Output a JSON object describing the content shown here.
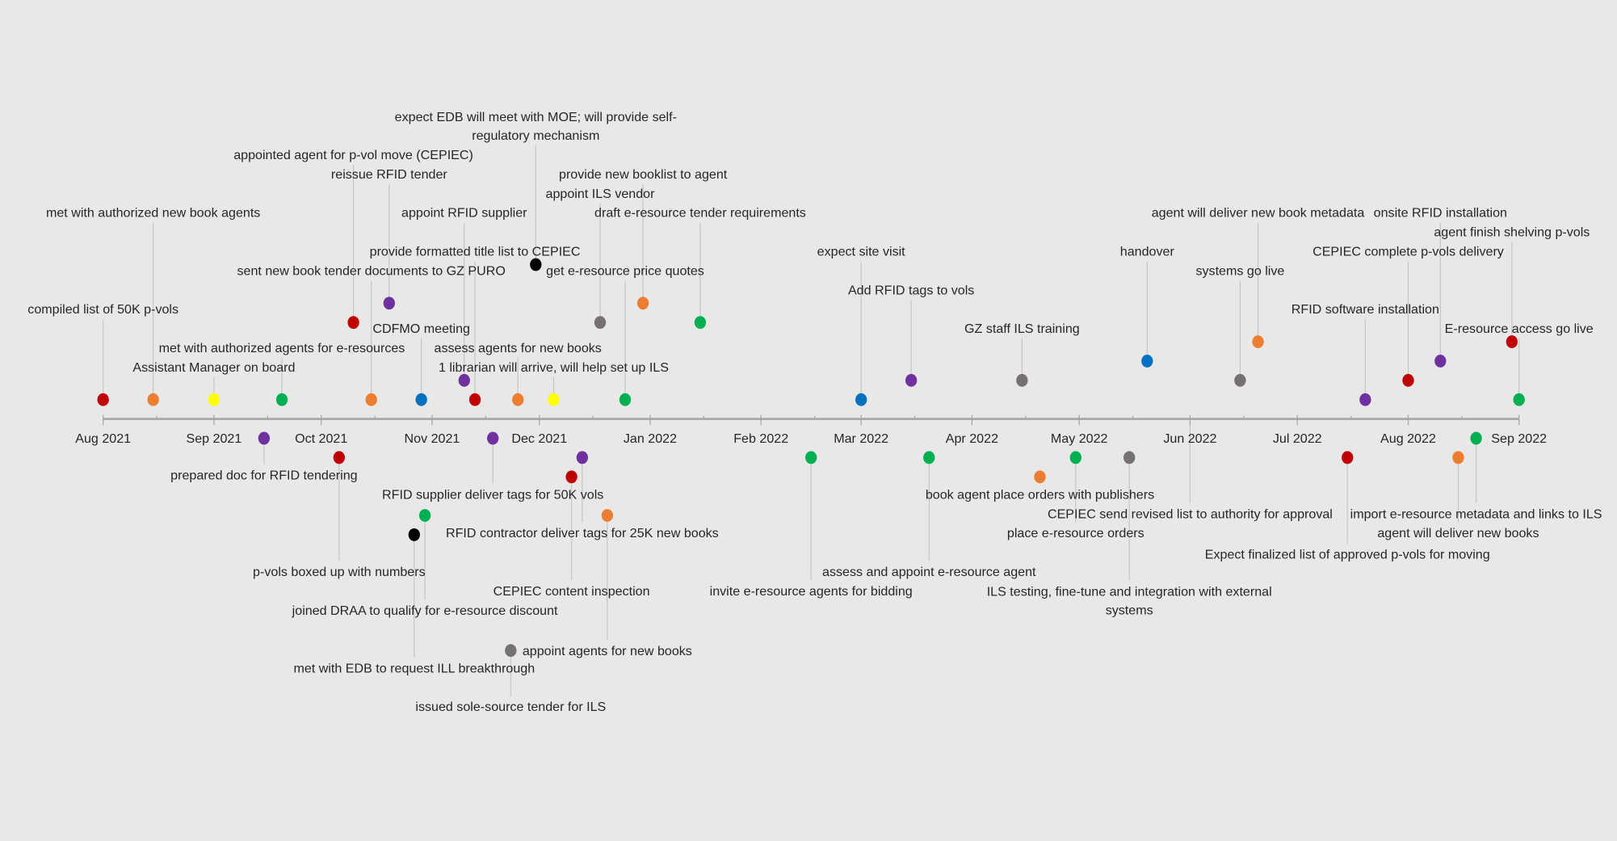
{
  "chart_data": {
    "type": "scatter",
    "subtype": "timeline",
    "title": "",
    "xlabel": "",
    "ylabel": "",
    "x_range": [
      "2021-08-01",
      "2022-09-01"
    ],
    "x_ticks": [
      "Aug 2021",
      "Sep 2021",
      "Oct 2021",
      "Nov 2021",
      "Dec 2021",
      "Jan 2022",
      "Feb 2022",
      "Mar 2022",
      "Apr 2022",
      "May 2022",
      "Jun 2022",
      "Jul 2022",
      "Aug 2022",
      "Sep 2022"
    ],
    "grid": false,
    "legend": "none",
    "background": "#e8e8e8",
    "colors": {
      "red": "#C00000",
      "orange": "#ED7D31",
      "yellow": "#FFFF00",
      "green": "#00B050",
      "blue": "#0070C0",
      "purple": "#7030A0",
      "black": "#000000",
      "grey": "#767171"
    },
    "events": [
      {
        "date": "2021-08-01",
        "y": 1,
        "label_level": 5.7,
        "color": "red",
        "label": "compiled list of 50K p-vols"
      },
      {
        "date": "2021-08-15",
        "y": 1,
        "label_level": 10.7,
        "color": "orange",
        "label": "met with authorized new book agents"
      },
      {
        "date": "2021-09-01",
        "y": 1,
        "label_level": 2.7,
        "color": "yellow",
        "label": "Assistant Manager on board"
      },
      {
        "date": "2021-09-20",
        "y": 1,
        "label_level": 3.7,
        "color": "green",
        "label": "met with authorized agents for e-resources"
      },
      {
        "date": "2021-10-10",
        "y": 5,
        "label_level": 13.7,
        "color": "red",
        "label": "appointed agent for p-vol  move (CEPIEC)"
      },
      {
        "date": "2021-10-15",
        "y": 1,
        "label_level": 7.7,
        "color": "orange",
        "label": "sent new book tender documents to GZ PURO"
      },
      {
        "date": "2021-10-20",
        "y": 6,
        "label_level": 12.7,
        "color": "purple",
        "label": "reissue RFID tender"
      },
      {
        "date": "2021-10-29",
        "y": 1,
        "label_level": 4.7,
        "color": "blue",
        "label": "CDFMO meeting"
      },
      {
        "date": "2021-11-10",
        "y": 2,
        "label_level": 10.7,
        "color": "purple",
        "label": "appoint RFID supplier"
      },
      {
        "date": "2021-11-13",
        "y": 1,
        "label_level": 8.7,
        "color": "red",
        "label": "provide formatted title list to CEPIEC"
      },
      {
        "date": "2021-11-25",
        "y": 1,
        "label_level": 3.7,
        "color": "orange",
        "label": "assess agents for new books"
      },
      {
        "date": "2021-11-30",
        "y": 8,
        "label_level": 15.2,
        "color": "black",
        "label": [
          "expect EDB will meet with MOE; will provide self-",
          "regulatory mechanism"
        ]
      },
      {
        "date": "2021-12-05",
        "y": 1,
        "label_level": 2.7,
        "color": "yellow",
        "label": "1 librarian will arrive, will help set up ILS"
      },
      {
        "date": "2021-12-18",
        "y": 5,
        "label_level": 11.7,
        "color": "grey",
        "label": "appoint ILS vendor"
      },
      {
        "date": "2021-12-25",
        "y": 1,
        "label_level": 7.7,
        "color": "green",
        "label": "get e-resource price quotes"
      },
      {
        "date": "2021-12-30",
        "y": 6,
        "label_level": 12.7,
        "color": "orange",
        "label": "provide new booklist to agent"
      },
      {
        "date": "2022-01-15",
        "y": 5,
        "label_level": 10.7,
        "color": "green",
        "label": "draft e-resource tender requirements"
      },
      {
        "date": "2022-03-01",
        "y": 1,
        "label_level": 8.7,
        "color": "blue",
        "label": "expect site visit"
      },
      {
        "date": "2022-03-15",
        "y": 2,
        "label_level": 6.7,
        "color": "purple",
        "label": "Add RFID tags to vols"
      },
      {
        "date": "2022-04-15",
        "y": 2,
        "label_level": 4.7,
        "color": "grey",
        "label": "GZ staff ILS training"
      },
      {
        "date": "2022-05-20",
        "y": 3,
        "label_level": 8.7,
        "color": "blue",
        "label": "handover"
      },
      {
        "date": "2022-06-15",
        "y": 2,
        "label_level": 7.7,
        "color": "grey",
        "label": "systems go live"
      },
      {
        "date": "2022-06-20",
        "y": 4,
        "label_level": 10.7,
        "color": "orange",
        "label": "agent will deliver new book metadata"
      },
      {
        "date": "2022-07-20",
        "y": 1,
        "label_level": 5.7,
        "color": "purple",
        "label": "RFID software installation"
      },
      {
        "date": "2022-08-01",
        "y": 2,
        "label_level": 8.7,
        "color": "red",
        "label": "CEPIEC complete p-vols delivery"
      },
      {
        "date": "2022-08-10",
        "y": 3,
        "label_level": 10.7,
        "color": "purple",
        "label": "onsite RFID installation"
      },
      {
        "date": "2022-08-30",
        "y": 4,
        "label_level": 9.7,
        "color": "red",
        "label": "agent finish shelving p-vols"
      },
      {
        "date": "2022-09-01",
        "y": 1,
        "label_level": 4.7,
        "color": "green",
        "label": "E-resource access go live"
      },
      {
        "date": "2021-09-15",
        "y": -1,
        "label_level": -2.9,
        "color": "purple",
        "label": "prepared doc for RFID tendering"
      },
      {
        "date": "2021-10-06",
        "y": -2,
        "label_level": -7.9,
        "color": "red",
        "label": "p-vols boxed up with numbers"
      },
      {
        "date": "2021-10-27",
        "y": -6,
        "label_level": -12.9,
        "color": "black",
        "label": "met with EDB to request ILL breakthrough"
      },
      {
        "date": "2021-10-30",
        "y": -5,
        "label_level": -9.9,
        "color": "green",
        "label": "joined DRAA to qualify for e-resource discount"
      },
      {
        "date": "2021-11-18",
        "y": -1,
        "label_level": -3.9,
        "color": "purple",
        "label": "RFID supplier deliver tags for 50K vols"
      },
      {
        "date": "2021-11-23",
        "y": -12,
        "label_level": -14.9,
        "color": "grey",
        "label": "issued sole-source tender for ILS"
      },
      {
        "date": "2021-12-10",
        "y": -3,
        "label_level": -8.9,
        "color": "red",
        "label": "CEPIEC content inspection"
      },
      {
        "date": "2021-12-13",
        "y": -2,
        "label_level": -5.9,
        "color": "purple",
        "label": "RFID contractor deliver tags for 25K new books"
      },
      {
        "date": "2021-12-20",
        "y": -5,
        "label_level": -12.0,
        "color": "orange",
        "label": "appoint agents for new books"
      },
      {
        "date": "2022-02-15",
        "y": -2,
        "label_level": -8.9,
        "color": "green",
        "label": "invite e-resource agents for bidding"
      },
      {
        "date": "2022-03-20",
        "y": -2,
        "label_level": -7.9,
        "color": "green",
        "label": "assess and appoint e-resource agent"
      },
      {
        "date": "2022-04-20",
        "y": -3,
        "label_level": -3.9,
        "color": "orange",
        "label": "book agent place orders with publishers"
      },
      {
        "date": "2022-04-30",
        "y": -2,
        "label_level": -5.9,
        "color": "green",
        "label": "place e-resource orders"
      },
      {
        "date": "2022-05-15",
        "y": -2,
        "label_level": -9.4,
        "color": "grey",
        "label": [
          "ILS testing, fine-tune and integration with external",
          "systems"
        ]
      },
      {
        "date": "2022-06-01",
        "y": 0,
        "label_level": -4.9,
        "color": null,
        "label": "CEPIEC send revised list to authority for approval"
      },
      {
        "date": "2022-07-15",
        "y": -2,
        "label_level": -7.0,
        "color": "red",
        "label": "Expect finalized list of approved p-vols for moving"
      },
      {
        "date": "2022-08-15",
        "y": -2,
        "label_level": -5.9,
        "color": "orange",
        "label": "agent will deliver new books"
      },
      {
        "date": "2022-08-20",
        "y": -1,
        "label_level": -4.9,
        "color": "green",
        "label": "import e-resource metadata and links to ILS"
      }
    ]
  }
}
